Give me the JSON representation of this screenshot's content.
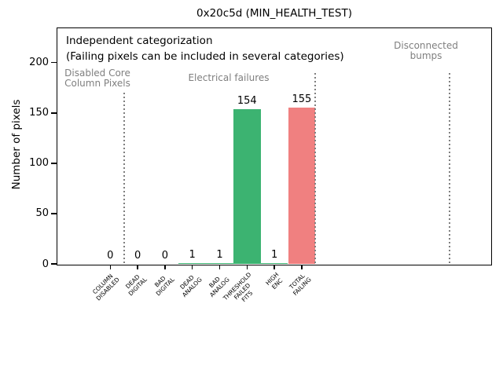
{
  "chart_data": {
    "type": "bar",
    "title": "0x20c5d (MIN_HEALTH_TEST)",
    "ylabel": "Number of pixels",
    "xlabel": "",
    "categories": [
      "COLUMN\nDISABLED",
      "DEAD\nDIGITAL",
      "BAD\nDIGITAL",
      "DEAD\nANALOG",
      "BAD\nANALOG",
      "THRESHOLD\nFAILED\nFITS",
      "HIGH\nENC",
      "TOTAL\nFAILING"
    ],
    "values": [
      0,
      0,
      0,
      1,
      1,
      154,
      1,
      155
    ],
    "bar_colors": [
      "#3cb371",
      "#3cb371",
      "#3cb371",
      "#3cb371",
      "#3cb371",
      "#3cb371",
      "#3cb371",
      "#f08080"
    ],
    "yticks": [
      0,
      50,
      100,
      150,
      200
    ],
    "ylim": [
      0,
      235
    ],
    "grid": false,
    "legend": null,
    "annotation": [
      "Independent categorization",
      "(Failing pixels can be included in several categories)"
    ],
    "sections": [
      {
        "label": "Disabled Core\nColumn Pixels"
      },
      {
        "label": "Electrical failures"
      },
      {
        "label": "Disconnected\nbumps"
      }
    ],
    "colors": {
      "failure_bar_green": "#3cb371",
      "total_bar_red": "#f08080",
      "section_gray": "#7f7f7f"
    }
  }
}
